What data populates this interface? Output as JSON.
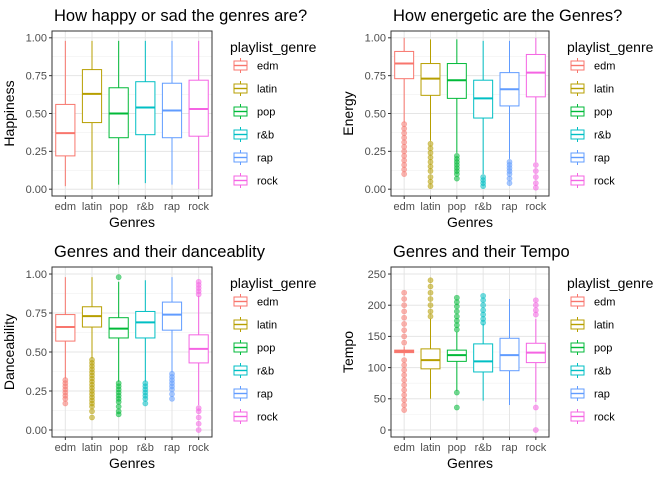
{
  "legend_title": "playlist_genre",
  "colors": {
    "edm": "#F8766D",
    "latin": "#B79F00",
    "pop": "#00BA38",
    "r&b": "#00BFC4",
    "rap": "#619CFF",
    "rock": "#F564E3"
  },
  "chart_data": [
    {
      "type": "boxplot",
      "title": "How happy or sad the genres are?",
      "xlabel": "Genres",
      "ylabel": "Happiness",
      "categories": [
        "edm",
        "latin",
        "pop",
        "r&b",
        "rap",
        "rock"
      ],
      "ylim": [
        0,
        1
      ],
      "yticks": [
        "0.00",
        "0.25",
        "0.50",
        "0.75",
        "1.00"
      ],
      "ytick_values": [
        0,
        0.25,
        0.5,
        0.75,
        1
      ],
      "legend": [
        "edm",
        "latin",
        "pop",
        "r&b",
        "rap",
        "rock"
      ],
      "boxes": [
        {
          "category": "edm",
          "min": 0.02,
          "q1": 0.22,
          "median": 0.37,
          "q3": 0.56,
          "max": 0.98,
          "outliers": []
        },
        {
          "category": "latin",
          "min": 0.0,
          "q1": 0.44,
          "median": 0.63,
          "q3": 0.79,
          "max": 0.98,
          "outliers": []
        },
        {
          "category": "pop",
          "min": 0.03,
          "q1": 0.34,
          "median": 0.5,
          "q3": 0.67,
          "max": 0.98,
          "outliers": []
        },
        {
          "category": "r&b",
          "min": 0.04,
          "q1": 0.36,
          "median": 0.54,
          "q3": 0.71,
          "max": 0.98,
          "outliers": []
        },
        {
          "category": "rap",
          "min": 0.03,
          "q1": 0.34,
          "median": 0.52,
          "q3": 0.7,
          "max": 0.98,
          "outliers": []
        },
        {
          "category": "rock",
          "min": 0.0,
          "q1": 0.35,
          "median": 0.53,
          "q3": 0.72,
          "max": 0.98,
          "outliers": []
        }
      ]
    },
    {
      "type": "boxplot",
      "title": "How energetic are the Genres?",
      "xlabel": "Genres",
      "ylabel": "Energy",
      "categories": [
        "edm",
        "latin",
        "pop",
        "r&b",
        "rap",
        "rock"
      ],
      "ylim": [
        0,
        1
      ],
      "yticks": [
        "0.00",
        "0.25",
        "0.50",
        "0.75",
        "1.00"
      ],
      "ytick_values": [
        0,
        0.25,
        0.5,
        0.75,
        1
      ],
      "legend": [
        "edm",
        "latin",
        "pop",
        "r&b",
        "rap",
        "rock"
      ],
      "boxes": [
        {
          "category": "edm",
          "min": 0.44,
          "q1": 0.73,
          "median": 0.83,
          "q3": 0.91,
          "max": 1.0,
          "outliers": [
            0.43,
            0.4,
            0.37,
            0.34,
            0.31,
            0.28,
            0.25,
            0.22,
            0.19,
            0.16,
            0.13,
            0.1
          ]
        },
        {
          "category": "latin",
          "min": 0.32,
          "q1": 0.62,
          "median": 0.73,
          "q3": 0.83,
          "max": 0.99,
          "outliers": [
            0.3,
            0.27,
            0.24,
            0.21,
            0.18,
            0.15,
            0.12,
            0.08,
            0.05,
            0.02
          ]
        },
        {
          "category": "pop",
          "min": 0.24,
          "q1": 0.6,
          "median": 0.72,
          "q3": 0.83,
          "max": 0.99,
          "outliers": [
            0.22,
            0.2,
            0.18,
            0.16,
            0.14,
            0.12,
            0.1,
            0.07
          ]
        },
        {
          "category": "r&b",
          "min": 0.1,
          "q1": 0.47,
          "median": 0.6,
          "q3": 0.72,
          "max": 0.98,
          "outliers": [
            0.08,
            0.06,
            0.04,
            0.02
          ]
        },
        {
          "category": "rap",
          "min": 0.2,
          "q1": 0.55,
          "median": 0.66,
          "q3": 0.77,
          "max": 0.98,
          "outliers": [
            0.18,
            0.16,
            0.14,
            0.12,
            0.1,
            0.07,
            0.04
          ]
        },
        {
          "category": "rock",
          "min": 0.18,
          "q1": 0.61,
          "median": 0.77,
          "q3": 0.89,
          "max": 1.0,
          "outliers": [
            0.16,
            0.12,
            0.08,
            0.04,
            0.01
          ]
        }
      ]
    },
    {
      "type": "boxplot",
      "title": "Genres and their danceablity",
      "xlabel": "Genres",
      "ylabel": "Danceability",
      "categories": [
        "edm",
        "latin",
        "pop",
        "r&b",
        "rap",
        "rock"
      ],
      "ylim": [
        0,
        1
      ],
      "yticks": [
        "0.00",
        "0.25",
        "0.50",
        "0.75",
        "1.00"
      ],
      "ytick_values": [
        0,
        0.25,
        0.5,
        0.75,
        1
      ],
      "legend": [
        "edm",
        "latin",
        "pop",
        "r&b",
        "rap",
        "rock"
      ],
      "boxes": [
        {
          "category": "edm",
          "min": 0.33,
          "q1": 0.57,
          "median": 0.66,
          "q3": 0.74,
          "max": 0.98,
          "outliers": [
            0.32,
            0.3,
            0.28,
            0.26,
            0.24,
            0.22,
            0.2,
            0.17
          ]
        },
        {
          "category": "latin",
          "min": 0.46,
          "q1": 0.66,
          "median": 0.73,
          "q3": 0.79,
          "max": 0.98,
          "outliers": [
            0.45,
            0.43,
            0.41,
            0.39,
            0.37,
            0.35,
            0.33,
            0.31,
            0.29,
            0.27,
            0.25,
            0.23,
            0.21,
            0.19,
            0.17,
            0.15,
            0.12,
            0.08
          ]
        },
        {
          "category": "pop",
          "min": 0.31,
          "q1": 0.59,
          "median": 0.65,
          "q3": 0.72,
          "max": 0.95,
          "outliers": [
            0.98,
            0.3,
            0.28,
            0.26,
            0.24,
            0.22,
            0.2,
            0.18,
            0.15,
            0.12,
            0.1
          ]
        },
        {
          "category": "r&b",
          "min": 0.31,
          "q1": 0.59,
          "median": 0.69,
          "q3": 0.76,
          "max": 0.96,
          "outliers": [
            0.3,
            0.28,
            0.26,
            0.24,
            0.22,
            0.2,
            0.17
          ]
        },
        {
          "category": "rap",
          "min": 0.37,
          "q1": 0.64,
          "median": 0.74,
          "q3": 0.82,
          "max": 0.98,
          "outliers": [
            0.36,
            0.34,
            0.32,
            0.3,
            0.28,
            0.26,
            0.23,
            0.2
          ]
        },
        {
          "category": "rock",
          "min": 0.16,
          "q1": 0.43,
          "median": 0.52,
          "q3": 0.61,
          "max": 0.86,
          "outliers": [
            0.95,
            0.93,
            0.91,
            0.89,
            0.87,
            0.14,
            0.12,
            0.08,
            0.04,
            0.0
          ]
        }
      ]
    },
    {
      "type": "boxplot",
      "title": "Genres and their Tempo",
      "xlabel": "Genres",
      "ylabel": "Tempo",
      "categories": [
        "edm",
        "latin",
        "pop",
        "r&b",
        "rap",
        "rock"
      ],
      "ylim": [
        0,
        250
      ],
      "yticks": [
        "0",
        "50",
        "100",
        "150",
        "200",
        "250"
      ],
      "ytick_values": [
        0,
        50,
        100,
        150,
        200,
        250
      ],
      "legend": [
        "edm",
        "latin",
        "pop",
        "r&b",
        "rap",
        "rock"
      ],
      "boxes": [
        {
          "category": "edm",
          "min": 119,
          "q1": 124,
          "median": 126,
          "q3": 128,
          "max": 134,
          "outliers": [
            220,
            210,
            200,
            190,
            180,
            170,
            160,
            150,
            140,
            112,
            104,
            96,
            88,
            80,
            72,
            64,
            56,
            48,
            40,
            32
          ]
        },
        {
          "category": "latin",
          "min": 50,
          "q1": 98,
          "median": 112,
          "q3": 130,
          "max": 178,
          "outliers": [
            240,
            230,
            220,
            210,
            200,
            190,
            182
          ]
        },
        {
          "category": "pop",
          "min": 63,
          "q1": 110,
          "median": 120,
          "q3": 128,
          "max": 157,
          "outliers": [
            212,
            205,
            198,
            190,
            182,
            175,
            168,
            161,
            60,
            36
          ]
        },
        {
          "category": "r&b",
          "min": 47,
          "q1": 93,
          "median": 110,
          "q3": 138,
          "max": 170,
          "outliers": [
            215,
            208,
            200,
            192,
            185,
            178,
            172
          ]
        },
        {
          "category": "rap",
          "min": 40,
          "q1": 95,
          "median": 120,
          "q3": 147,
          "max": 210,
          "outliers": []
        },
        {
          "category": "rock",
          "min": 45,
          "q1": 108,
          "median": 124,
          "q3": 139,
          "max": 178,
          "outliers": [
            208,
            200,
            192,
            185,
            36,
            0
          ]
        }
      ]
    }
  ]
}
